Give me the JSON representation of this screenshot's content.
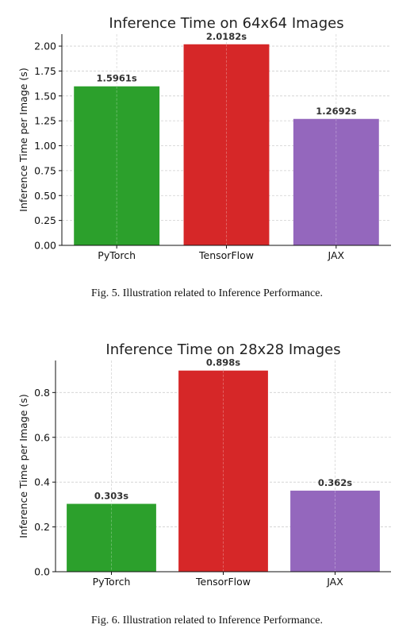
{
  "chart_data": [
    {
      "type": "bar",
      "title": "Inference Time on 64x64 Images",
      "xlabel": "",
      "ylabel": "Inference Time per Image (s)",
      "categories": [
        "PyTorch",
        "TensorFlow",
        "JAX"
      ],
      "values": [
        1.5961,
        2.0182,
        1.2692
      ],
      "data_labels": [
        "1.5961s",
        "2.0182s",
        "1.2692s"
      ],
      "colors": [
        "#2ca02c",
        "#d62728",
        "#9467bd"
      ],
      "ylim": [
        0,
        2.12
      ],
      "yticks": [
        "0.00",
        "0.25",
        "0.50",
        "0.75",
        "1.00",
        "1.25",
        "1.50",
        "1.75",
        "2.00"
      ],
      "grid": true,
      "caption": "Fig. 5.  Illustration related to Inference Performance."
    },
    {
      "type": "bar",
      "title": "Inference Time on 28x28 Images",
      "xlabel": "",
      "ylabel": "Inference Time per Image (s)",
      "categories": [
        "PyTorch",
        "TensorFlow",
        "JAX"
      ],
      "values": [
        0.303,
        0.898,
        0.362
      ],
      "data_labels": [
        "0.303s",
        "0.898s",
        "0.362s"
      ],
      "colors": [
        "#2ca02c",
        "#d62728",
        "#9467bd"
      ],
      "ylim": [
        0,
        0.943
      ],
      "yticks": [
        "0.0",
        "0.2",
        "0.4",
        "0.6",
        "0.8"
      ],
      "grid": true,
      "caption": "Fig. 6.  Illustration related to Inference Performance."
    }
  ]
}
